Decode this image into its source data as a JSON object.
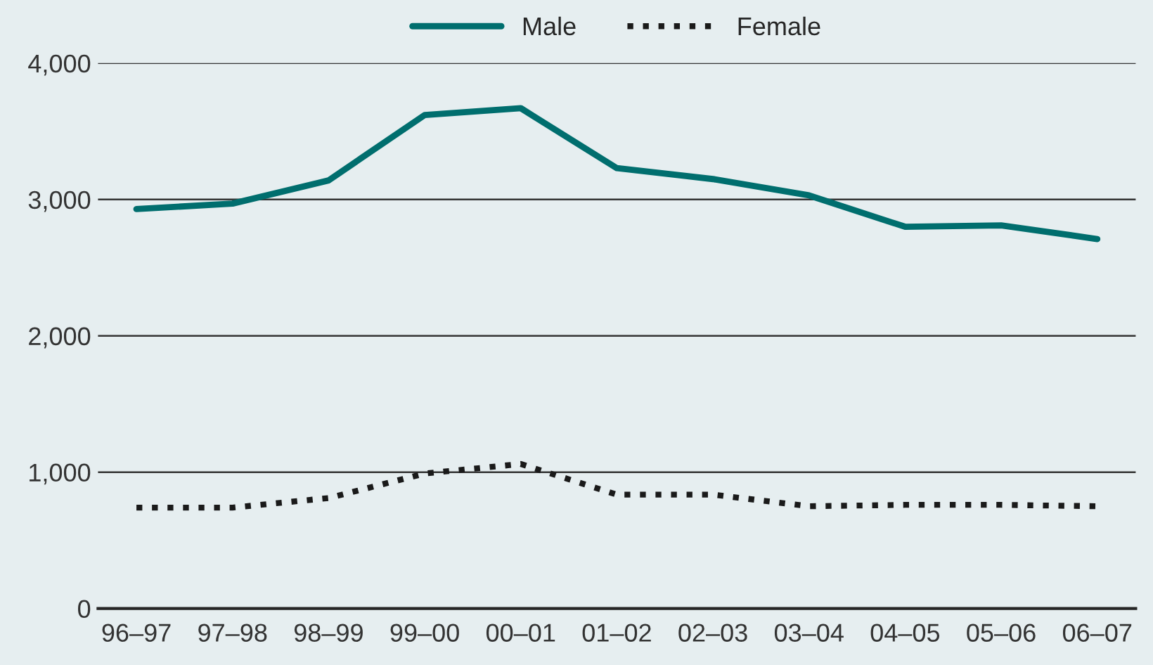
{
  "chart_data": {
    "type": "line",
    "categories": [
      "96–97",
      "97–98",
      "98–99",
      "99–00",
      "00–01",
      "01–02",
      "02–03",
      "03–04",
      "04–05",
      "05–06",
      "06–07"
    ],
    "series": [
      {
        "name": "Male",
        "color": "#006e6e",
        "line_style": "solid",
        "values": [
          2930,
          2970,
          3140,
          3620,
          3670,
          3230,
          3150,
          3030,
          2800,
          2810,
          2710
        ]
      },
      {
        "name": "Female",
        "color": "#1a1a1a",
        "line_style": "dotted",
        "values": [
          740,
          740,
          810,
          990,
          1060,
          835,
          835,
          750,
          760,
          760,
          750
        ]
      }
    ],
    "ylim": [
      0,
      4000
    ],
    "yticks": [
      0,
      {
        "value": 1000,
        "label": "1,000"
      },
      {
        "value": 2000,
        "label": "2,000"
      },
      {
        "value": 3000,
        "label": "3,000"
      },
      {
        "value": 4000,
        "label": "4,000"
      }
    ],
    "grid": "y",
    "legend": "top",
    "marker": "none"
  }
}
